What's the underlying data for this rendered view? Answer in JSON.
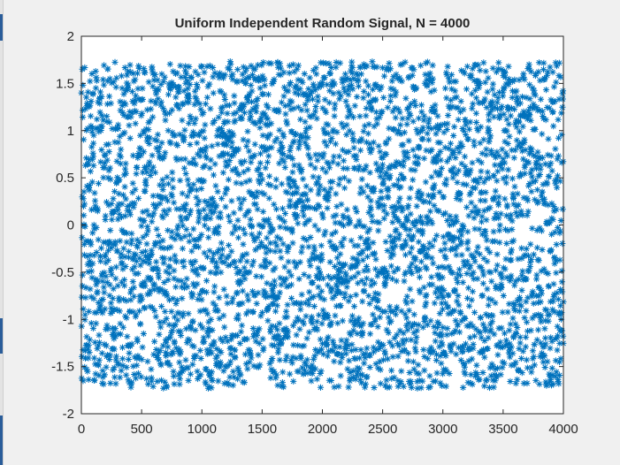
{
  "window": {
    "background": "#f0f0f0"
  },
  "colors": {
    "marker": "#0072BD",
    "axes_background": "#ffffff",
    "axes_line": "#262626",
    "text": "#262626"
  },
  "chart_data": {
    "type": "scatter",
    "title": "Uniform Independent Random Signal, N = 4000",
    "xlabel": "",
    "ylabel": "",
    "xlim": [
      0,
      4000
    ],
    "ylim": [
      -2,
      2
    ],
    "xticks": [
      0,
      500,
      1000,
      1500,
      2000,
      2500,
      3000,
      3500,
      4000
    ],
    "yticks": [
      -2,
      -1.5,
      -1,
      -0.5,
      0,
      0.5,
      1,
      1.5,
      2
    ],
    "xtick_labels": [
      "0",
      "500",
      "1000",
      "1500",
      "2000",
      "2500",
      "3000",
      "3500",
      "4000"
    ],
    "ytick_labels": [
      "-2",
      "-1.5",
      "-1",
      "-0.5",
      "0",
      "0.5",
      "1",
      "1.5",
      "2"
    ],
    "marker": "asterisk",
    "grid": false,
    "legend": "none",
    "series": [
      {
        "n_points": 4000,
        "distribution": "uniform",
        "x_range": [
          1,
          4000
        ],
        "y_range": [
          -1.732,
          1.732
        ]
      }
    ]
  }
}
